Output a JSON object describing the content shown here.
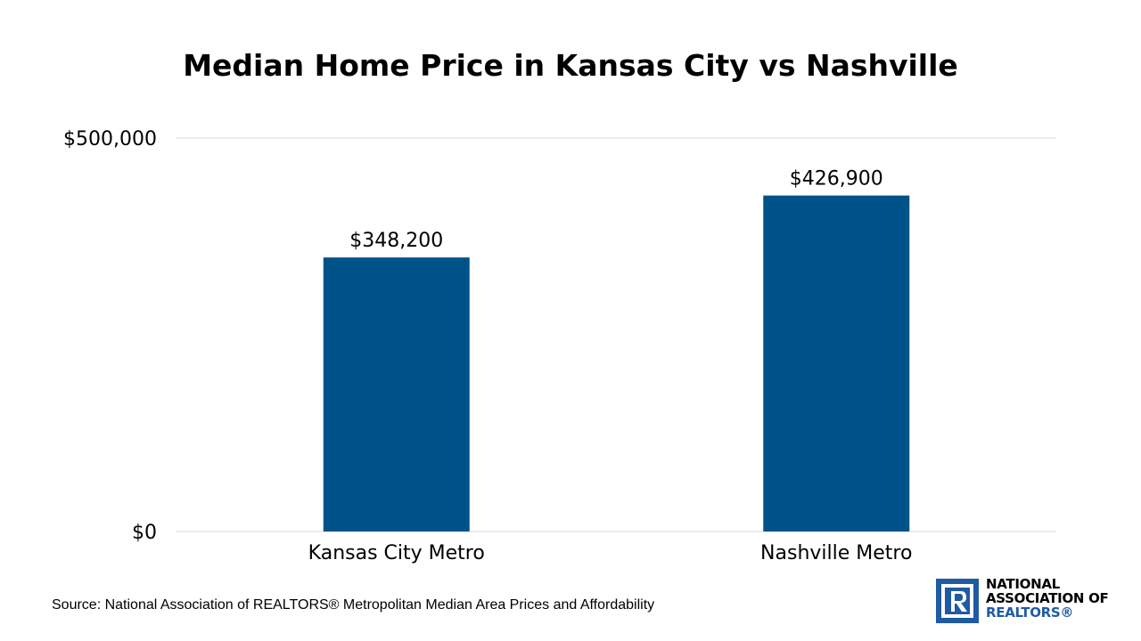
{
  "chart_data": {
    "type": "bar",
    "title": "Median Home Price in Kansas City vs Nashville",
    "categories": [
      "Kansas City Metro",
      "Nashville Metro"
    ],
    "values": [
      348200,
      426900
    ],
    "value_labels": [
      "$348,200",
      "$426,900"
    ],
    "ylim": [
      0,
      500000
    ],
    "yticks": [
      0,
      500000
    ],
    "ytick_labels": [
      "$0",
      "$500,000"
    ],
    "grid": true,
    "legend": "none",
    "bar_color": "#00538a",
    "gridline_color": "#d9d9d9"
  },
  "source": "Source: National Association of REALTORS® Metropolitan Median Area Prices and Affordability",
  "logo": {
    "lines": [
      "NATIONAL",
      "ASSOCIATION OF",
      "REALTORS®"
    ],
    "color": "#1f5aa3",
    "icon": "realtor-r-icon"
  }
}
